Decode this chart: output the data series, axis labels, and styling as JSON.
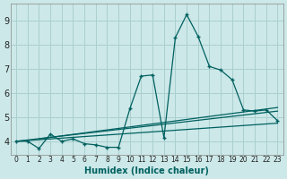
{
  "xlabel": "Humidex (Indice chaleur)",
  "background_color": "#cce8e8",
  "grid_color": "#aacfcf",
  "line_color": "#006060",
  "xlim": [
    -0.5,
    23.5
  ],
  "ylim": [
    3.45,
    9.7
  ],
  "yticks": [
    4,
    5,
    6,
    7,
    8,
    9
  ],
  "xticks": [
    0,
    1,
    2,
    3,
    4,
    5,
    6,
    7,
    8,
    9,
    10,
    11,
    12,
    13,
    14,
    15,
    16,
    17,
    18,
    19,
    20,
    21,
    22,
    23
  ],
  "series1_x": [
    0,
    1,
    2,
    3,
    4,
    5,
    6,
    7,
    8,
    9,
    10,
    11,
    12,
    13,
    14,
    15,
    16,
    17,
    18,
    19,
    20,
    21,
    22,
    23
  ],
  "series1_y": [
    4.0,
    4.0,
    3.7,
    4.3,
    4.0,
    4.1,
    3.9,
    3.85,
    3.75,
    3.75,
    5.35,
    6.7,
    6.75,
    4.15,
    8.3,
    9.25,
    8.35,
    7.1,
    6.95,
    6.55,
    5.3,
    5.25,
    5.3,
    4.85
  ],
  "trend1_x": [
    0,
    23
  ],
  "trend1_y": [
    4.0,
    5.25
  ],
  "trend2_x": [
    0,
    23
  ],
  "trend2_y": [
    4.0,
    4.75
  ],
  "trend3_x": [
    2,
    23
  ],
  "trend3_y": [
    4.1,
    5.4
  ]
}
